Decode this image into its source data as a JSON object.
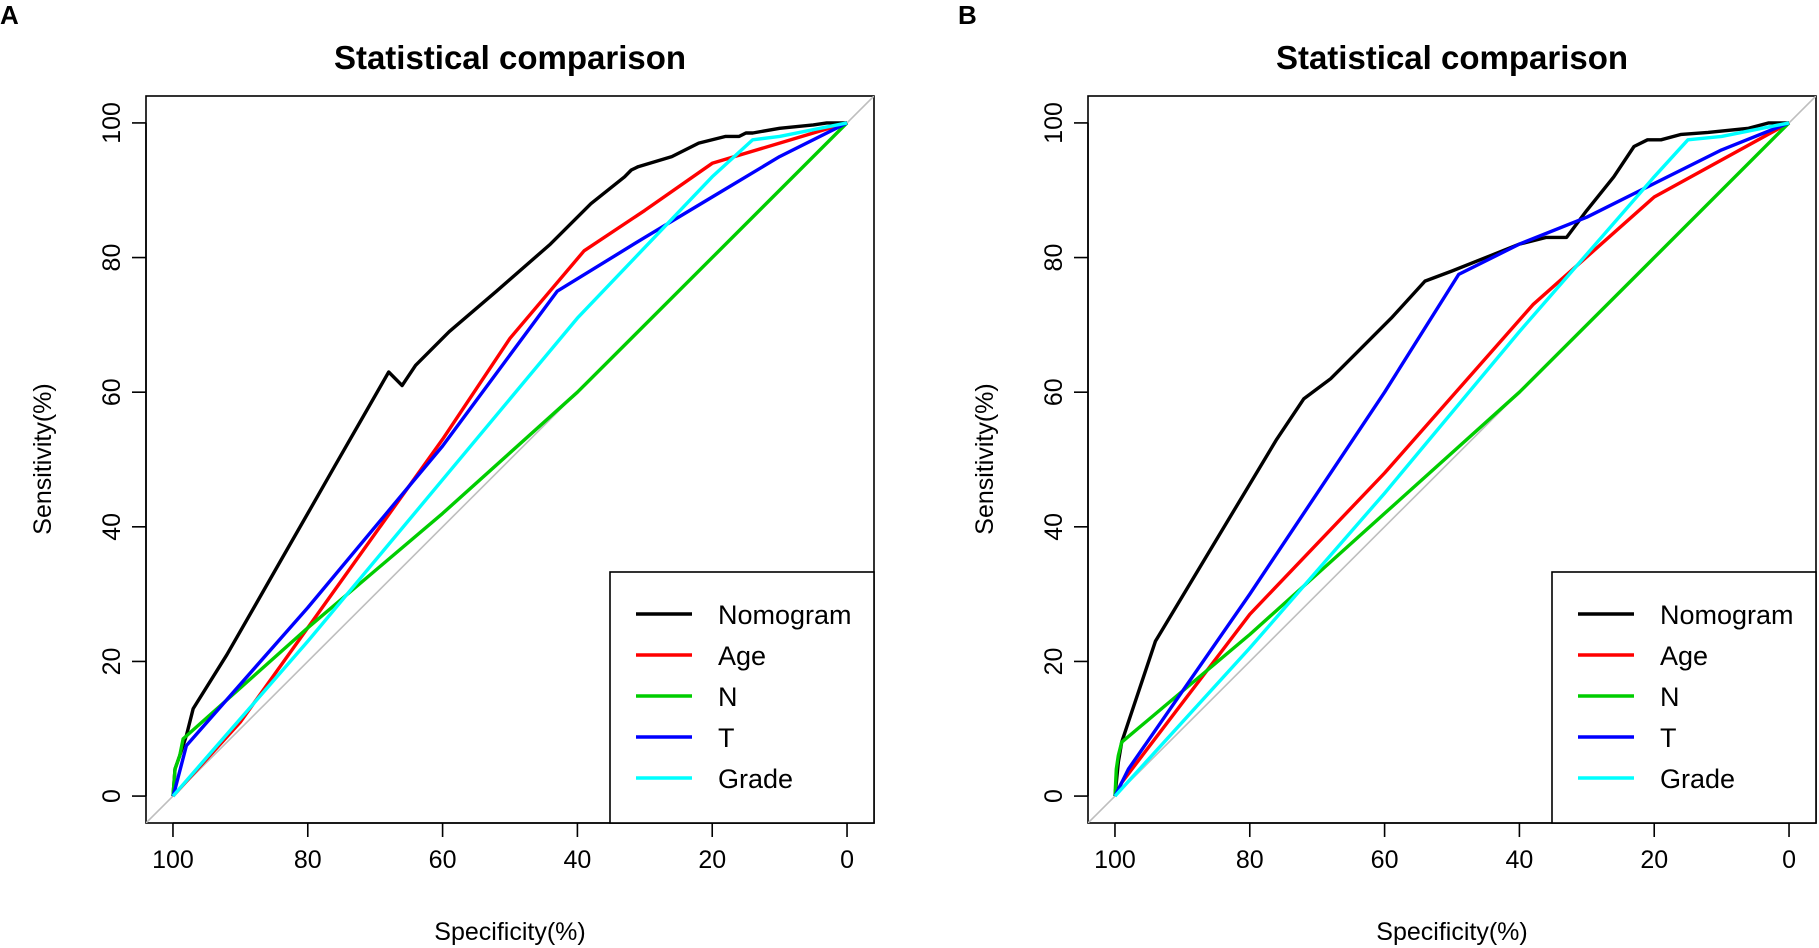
{
  "chart_data": [
    {
      "panel": "A",
      "type": "line",
      "title": "Statistical comparison",
      "xlabel": "Specificity(%)",
      "ylabel": "Sensitivity(%)",
      "xlim": [
        104,
        -4
      ],
      "ylim": [
        -4,
        104
      ],
      "x_reversed": true,
      "xticks": [
        "100",
        "80",
        "60",
        "40",
        "20",
        "0"
      ],
      "yticks": [
        "0",
        "20",
        "40",
        "60",
        "80",
        "100"
      ],
      "grid": false,
      "legend_position": "bottom-right",
      "reference_line": {
        "x": [
          100,
          0
        ],
        "y": [
          0,
          100
        ],
        "color": "#bebebe"
      },
      "series": [
        {
          "name": "Nomogram",
          "color": "#000000",
          "x": [
            100,
            99.7,
            99,
            98,
            97,
            92,
            88,
            84,
            80,
            76,
            72,
            68,
            66,
            64,
            59,
            52,
            44,
            38,
            33,
            32,
            31,
            26,
            22,
            18,
            16,
            15,
            14,
            10,
            5,
            3,
            0
          ],
          "y": [
            0,
            4,
            6,
            9,
            13,
            21,
            28,
            35,
            42,
            49,
            56,
            63,
            61,
            64,
            69,
            75,
            82,
            88,
            92,
            93,
            93.5,
            95,
            97,
            98,
            98,
            98.5,
            98.5,
            99.2,
            99.7,
            100,
            100
          ]
        },
        {
          "name": "Age",
          "color": "#ff0000",
          "x": [
            100,
            90,
            80,
            70,
            60,
            50,
            39,
            30,
            20,
            10,
            0
          ],
          "y": [
            0,
            11,
            25,
            39,
            53,
            68,
            81,
            87,
            94,
            97,
            100
          ]
        },
        {
          "name": "N",
          "color": "#00cd00",
          "x": [
            100,
            99.7,
            99,
            98.5,
            80,
            60,
            40,
            20,
            0
          ],
          "y": [
            0,
            4,
            6,
            8.5,
            25,
            42,
            60,
            80,
            100
          ]
        },
        {
          "name": "T",
          "color": "#0000ff",
          "x": [
            100,
            99.7,
            98,
            80,
            60,
            43,
            30,
            20,
            10,
            0
          ],
          "y": [
            0,
            1,
            7.5,
            28,
            52,
            75,
            83,
            89,
            95,
            100
          ]
        },
        {
          "name": "Grade",
          "color": "#00ffff",
          "x": [
            100,
            80,
            60,
            40,
            20,
            14,
            10,
            0
          ],
          "y": [
            0,
            23,
            47,
            71,
            92,
            97.5,
            98,
            100
          ]
        }
      ]
    },
    {
      "panel": "B",
      "type": "line",
      "title": "Statistical comparison",
      "xlabel": "Specificity(%)",
      "ylabel": "Sensitivity(%)",
      "xlim": [
        104,
        -4
      ],
      "ylim": [
        -4,
        104
      ],
      "x_reversed": true,
      "xticks": [
        "100",
        "80",
        "60",
        "40",
        "20",
        "0"
      ],
      "yticks": [
        "0",
        "20",
        "40",
        "60",
        "80",
        "100"
      ],
      "grid": false,
      "legend_position": "bottom-right",
      "reference_line": {
        "x": [
          100,
          0
        ],
        "y": [
          0,
          100
        ],
        "color": "#bebebe"
      },
      "series": [
        {
          "name": "Nomogram",
          "color": "#000000",
          "x": [
            100,
            99.5,
            99,
            98,
            94,
            88,
            82,
            76,
            72,
            68,
            64,
            59,
            54,
            50,
            45,
            40,
            36,
            33,
            30,
            26,
            23,
            21,
            19,
            16,
            12,
            6,
            3,
            0
          ],
          "y": [
            0,
            5,
            8,
            11,
            23,
            33,
            43,
            53,
            59,
            62,
            66,
            71,
            76.5,
            78,
            80,
            82,
            83,
            83,
            87,
            92,
            96.5,
            97.5,
            97.5,
            98.3,
            98.6,
            99.2,
            100,
            100
          ]
        },
        {
          "name": "Age",
          "color": "#ff0000",
          "x": [
            100,
            99,
            80,
            60,
            38,
            20,
            0
          ],
          "y": [
            0,
            2,
            27,
            48,
            73,
            89,
            100
          ]
        },
        {
          "name": "N",
          "color": "#00cd00",
          "x": [
            100,
            99.8,
            99.5,
            99,
            80,
            60,
            40,
            20,
            0
          ],
          "y": [
            0,
            4,
            6,
            8,
            24,
            42,
            60,
            80,
            100
          ]
        },
        {
          "name": "T",
          "color": "#0000ff",
          "x": [
            100,
            98,
            80,
            60,
            49,
            40,
            30,
            20,
            10,
            0
          ],
          "y": [
            0,
            4,
            30,
            60,
            77.5,
            82,
            86,
            91,
            96,
            100
          ]
        },
        {
          "name": "Grade",
          "color": "#00ffff",
          "x": [
            100,
            80,
            60,
            40,
            20,
            15,
            10,
            0
          ],
          "y": [
            0,
            22,
            45,
            69,
            92,
            97.5,
            98,
            100
          ]
        }
      ]
    }
  ]
}
